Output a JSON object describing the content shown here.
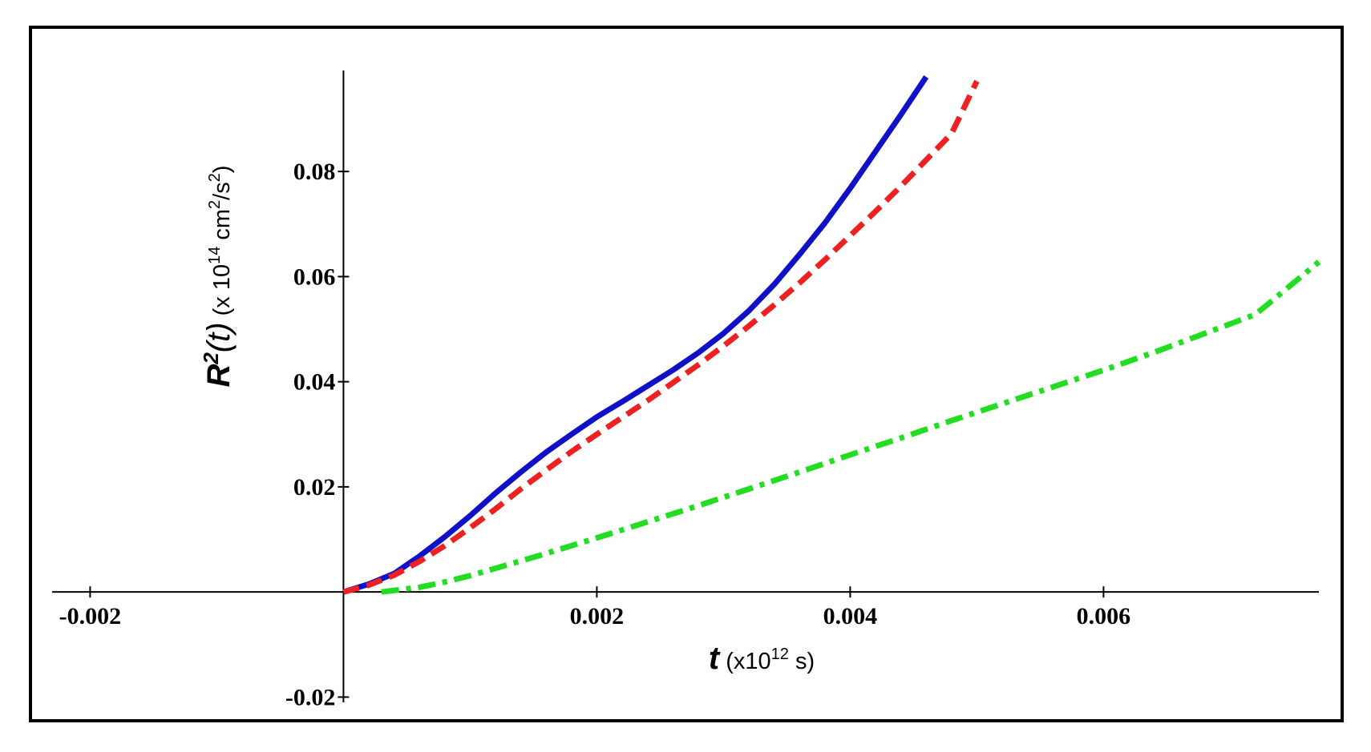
{
  "chart_data": {
    "type": "line",
    "title": "",
    "xlabel": {
      "symbol": "t",
      "unit_prefix": " (x10",
      "unit_exp": "12",
      "unit_suffix": " s)"
    },
    "ylabel": {
      "symbol": "R",
      "symbol_sup": "2",
      "arg": "(t)",
      "unit_prefix": " (x 10",
      "unit_exp1": "14",
      "unit_mid": " cm",
      "unit_exp2": "2",
      "unit_mid2": "/s",
      "unit_exp3": "2",
      "unit_suffix": ")"
    },
    "xlim": [
      -0.0023,
      0.0077
    ],
    "ylim": [
      -0.021,
      0.098
    ],
    "x_ticks": [
      {
        "value": -0.002,
        "label": "-0.002"
      },
      {
        "value": 0.002,
        "label": "0.002"
      },
      {
        "value": 0.004,
        "label": "0.004"
      },
      {
        "value": 0.006,
        "label": "0.006"
      }
    ],
    "y_ticks": [
      {
        "value": -0.02,
        "label": "-0.02"
      },
      {
        "value": 0.02,
        "label": "0.02"
      },
      {
        "value": 0.04,
        "label": "0.04"
      },
      {
        "value": 0.06,
        "label": "0.06"
      },
      {
        "value": 0.08,
        "label": "0.08"
      }
    ],
    "grid": false,
    "legend": "none",
    "series": [
      {
        "color": "#1010c8",
        "style": "solid",
        "x": [
          0,
          0.0002,
          0.0004,
          0.0006,
          0.0008,
          0.001,
          0.0012,
          0.0014,
          0.0016,
          0.0018,
          0.002,
          0.0022,
          0.0024,
          0.0026,
          0.0028,
          0.003,
          0.0032,
          0.0034,
          0.0036,
          0.0038,
          0.004,
          0.0042,
          0.0044,
          0.0046
        ],
        "y": [
          0,
          0.0015,
          0.0035,
          0.0068,
          0.0105,
          0.0145,
          0.0188,
          0.0228,
          0.0266,
          0.03,
          0.0333,
          0.0362,
          0.0392,
          0.0422,
          0.0455,
          0.0492,
          0.0535,
          0.0585,
          0.0642,
          0.0702,
          0.0768,
          0.0838,
          0.0908,
          0.098
        ]
      },
      {
        "color": "#ee2020",
        "style": "dashed",
        "x": [
          0,
          0.0002,
          0.0004,
          0.0006,
          0.0008,
          0.001,
          0.0012,
          0.0014,
          0.0016,
          0.0018,
          0.002,
          0.0022,
          0.0024,
          0.0026,
          0.0028,
          0.003,
          0.0032,
          0.0034,
          0.0036,
          0.0038,
          0.004,
          0.0042,
          0.0044,
          0.0046,
          0.0048,
          0.005
        ],
        "y": [
          0,
          0.0013,
          0.0032,
          0.0058,
          0.0088,
          0.0122,
          0.0158,
          0.0196,
          0.0232,
          0.0267,
          0.03,
          0.0332,
          0.0364,
          0.0398,
          0.0432,
          0.0468,
          0.0506,
          0.0546,
          0.0588,
          0.0632,
          0.0678,
          0.0724,
          0.0772,
          0.0822,
          0.0872,
          0.0972
        ]
      },
      {
        "color": "#22dd22",
        "style": "dashdot",
        "x": [
          0.0003,
          0.0006,
          0.0008,
          0.001,
          0.0012,
          0.0015,
          0.0018,
          0.002,
          0.0022,
          0.0025,
          0.0028,
          0.003,
          0.0033,
          0.0036,
          0.004,
          0.0044,
          0.0048,
          0.0052,
          0.0056,
          0.006,
          0.0064,
          0.0068,
          0.0072,
          0.0077
        ],
        "y": [
          0,
          0.0009,
          0.0019,
          0.0031,
          0.0045,
          0.0066,
          0.0088,
          0.0103,
          0.0118,
          0.0141,
          0.0164,
          0.018,
          0.0204,
          0.0228,
          0.0261,
          0.0293,
          0.0326,
          0.0358,
          0.039,
          0.0422,
          0.0456,
          0.0492,
          0.0528,
          0.0628
        ]
      }
    ]
  }
}
